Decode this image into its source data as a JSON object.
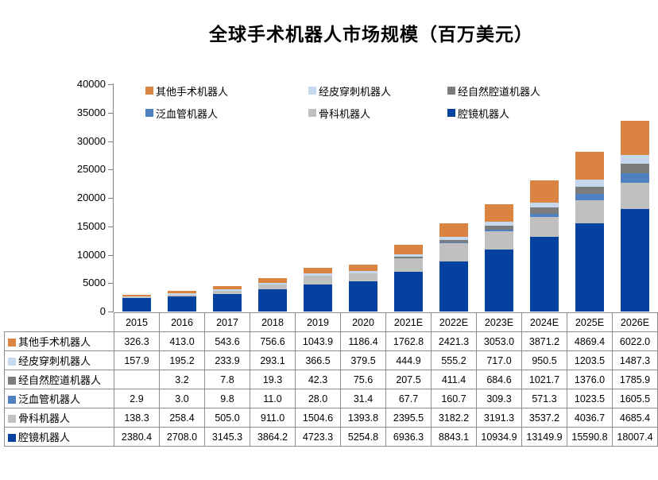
{
  "title": "全球手术机器人市场规模（百万美元）",
  "chart_data": {
    "type": "bar",
    "stacked": true,
    "title": "全球手术机器人市场规模（百万美元）",
    "xlabel": "",
    "ylabel": "",
    "ylim": [
      0,
      40000
    ],
    "yticks": [
      0,
      5000,
      10000,
      15000,
      20000,
      25000,
      30000,
      35000,
      40000
    ],
    "grid": false,
    "legend_position": "top",
    "data_table_shown": true,
    "categories": [
      "2015",
      "2016",
      "2017",
      "2018",
      "2019",
      "2020",
      "2021E",
      "2022E",
      "2023E",
      "2024E",
      "2025E",
      "2026E"
    ],
    "series": [
      {
        "name": "其他手术机器人",
        "color": "#DB8340",
        "values": [
          326.3,
          413.0,
          543.6,
          756.6,
          1043.9,
          1186.4,
          1762.8,
          2421.3,
          3053.0,
          3871.2,
          4869.4,
          6022.0
        ]
      },
      {
        "name": "经皮穿刺机器人",
        "color": "#C6D8EE",
        "values": [
          157.9,
          195.2,
          233.9,
          293.1,
          366.5,
          379.5,
          444.9,
          555.2,
          717.0,
          950.5,
          1203.5,
          1487.3
        ]
      },
      {
        "name": "经自然腔道机器人",
        "color": "#7C7C7C",
        "values": [
          null,
          3.2,
          7.8,
          19.3,
          42.3,
          75.6,
          207.5,
          411.4,
          684.6,
          1021.7,
          1376.0,
          1785.9
        ]
      },
      {
        "name": "泛血管机器人",
        "color": "#4F81C0",
        "values": [
          2.9,
          3.0,
          9.8,
          11.0,
          28.0,
          31.4,
          67.7,
          160.7,
          309.3,
          571.3,
          1023.5,
          1605.5
        ]
      },
      {
        "name": "骨科机器人",
        "color": "#C0C0C0",
        "values": [
          138.3,
          258.4,
          505.0,
          911.0,
          1504.6,
          1393.8,
          2395.5,
          3182.2,
          3191.3,
          3537.2,
          4036.7,
          4685.4
        ]
      },
      {
        "name": "腔镜机器人",
        "color": "#05419E",
        "values": [
          2380.4,
          2708.0,
          3145.3,
          3864.2,
          4723.3,
          5254.8,
          6936.3,
          8843.1,
          10934.9,
          13149.9,
          15590.8,
          18007.4
        ]
      }
    ]
  }
}
